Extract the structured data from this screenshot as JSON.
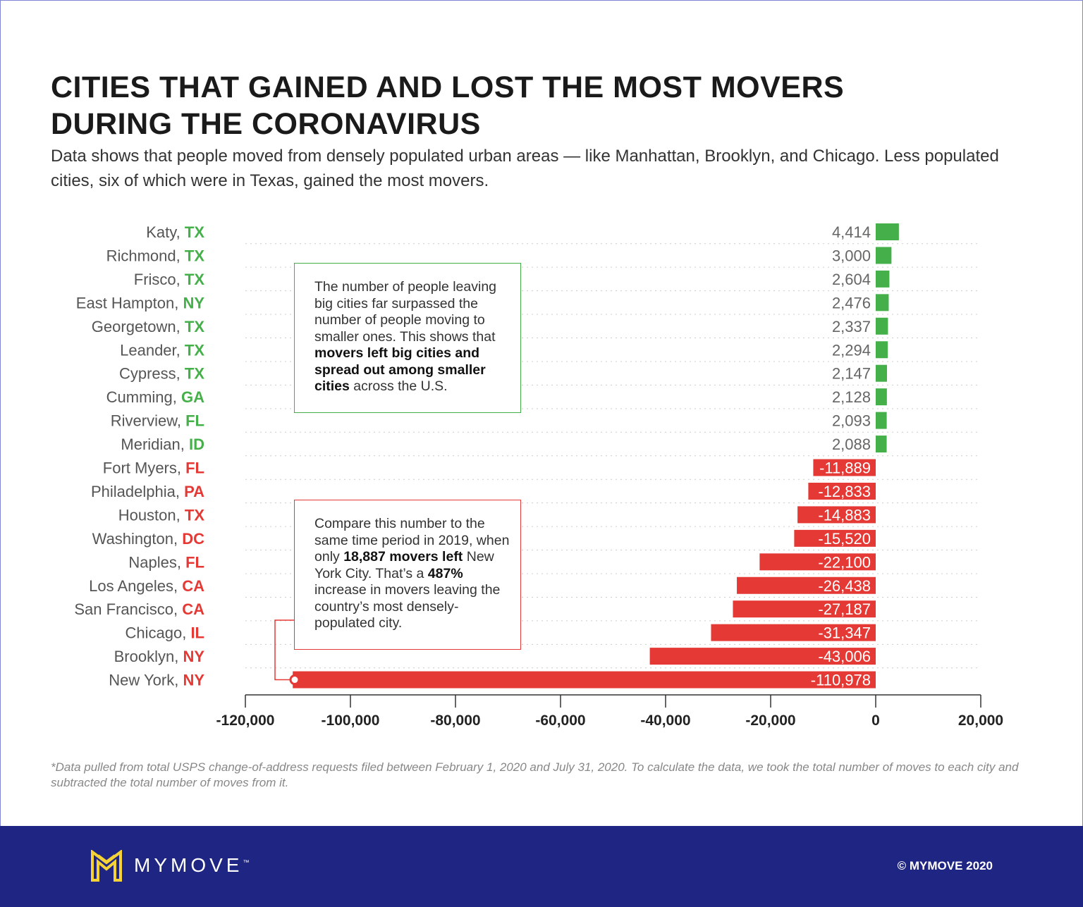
{
  "title": "CITIES THAT GAINED AND LOST THE MOST MOVERS DURING THE CORONAVIRUS",
  "subtitle": "Data shows that people moved from densely populated urban areas — like Manhattan, Brooklyn, and Chicago. Less populated cities, six of which were in Texas, gained the most movers.",
  "notes": {
    "green": {
      "pre": "The number of people leaving big cities far surpassed the number of people moving to smaller ones. This shows that ",
      "bold": "movers left big cities and spread out among smaller cities",
      "post": " across the U.S."
    },
    "red": {
      "pre": "Compare this number to the same time period in 2019, when only ",
      "bold1": "18,887 movers left",
      "mid": " New York City. That’s a ",
      "bold2": "487%",
      "post": " increase in movers leaving the country’s most densely-populated city."
    }
  },
  "footnote": "*Data pulled from total USPS change-of-address requests filed between February 1, 2020 and July 31, 2020. To calculate the data, we took the total number of moves to each city and subtracted the total number of moves from it.",
  "footer": {
    "brand": "MYMOVE",
    "tm": "™",
    "copyright": "© MYMOVE 2020"
  },
  "colors": {
    "gain": "#45b04a",
    "loss": "#e53935",
    "footer": "#1f2582",
    "logo": "#f5d235"
  },
  "chart_data": {
    "type": "bar",
    "orientation": "horizontal",
    "categories": [
      {
        "city": "Katy",
        "state": "TX"
      },
      {
        "city": "Richmond",
        "state": "TX"
      },
      {
        "city": "Frisco",
        "state": "TX"
      },
      {
        "city": "East Hampton",
        "state": "NY"
      },
      {
        "city": "Georgetown",
        "state": "TX"
      },
      {
        "city": "Leander",
        "state": "TX"
      },
      {
        "city": "Cypress",
        "state": "TX"
      },
      {
        "city": "Cumming",
        "state": "GA"
      },
      {
        "city": "Riverview",
        "state": "FL"
      },
      {
        "city": "Meridian",
        "state": "ID"
      },
      {
        "city": "Fort Myers",
        "state": "FL"
      },
      {
        "city": "Philadelphia",
        "state": "PA"
      },
      {
        "city": "Houston",
        "state": "TX"
      },
      {
        "city": "Washington",
        "state": "DC"
      },
      {
        "city": "Naples",
        "state": "FL"
      },
      {
        "city": "Los Angeles",
        "state": "CA"
      },
      {
        "city": "San Francisco",
        "state": "CA"
      },
      {
        "city": "Chicago",
        "state": "IL"
      },
      {
        "city": "Brooklyn",
        "state": "NY"
      },
      {
        "city": "New York",
        "state": "NY"
      }
    ],
    "values": [
      4414,
      3000,
      2604,
      2476,
      2337,
      2294,
      2147,
      2128,
      2093,
      2088,
      -11889,
      -12833,
      -14883,
      -15520,
      -22100,
      -26438,
      -27187,
      -31347,
      -43006,
      -110978
    ],
    "xlim": [
      -120000,
      20000
    ],
    "xticks": [
      -120000,
      -100000,
      -80000,
      -60000,
      -40000,
      -20000,
      0,
      20000
    ],
    "xtick_labels": [
      "-120,000",
      "-100,000",
      "-80,000",
      "-60,000",
      "-40,000",
      "-20,000",
      "0",
      "20,000"
    ],
    "grid": "dotted horizontal"
  }
}
